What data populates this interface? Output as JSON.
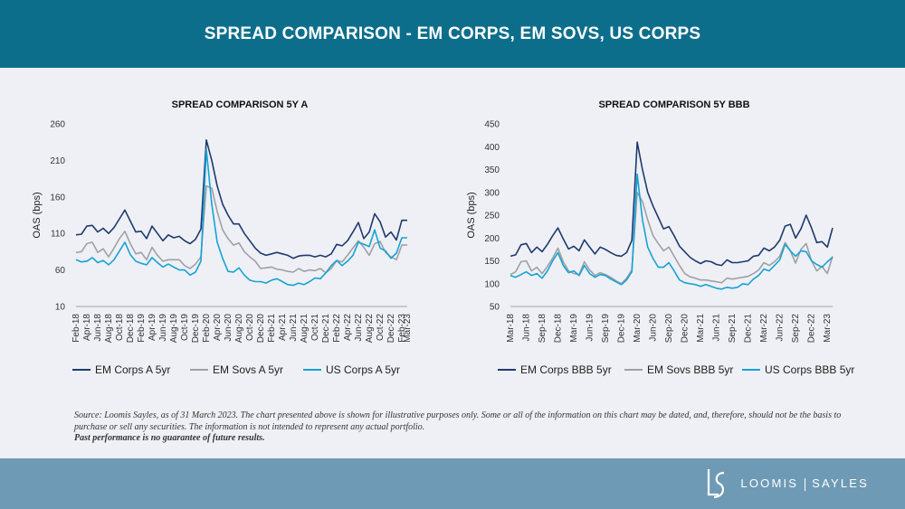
{
  "header": {
    "title": "SPREAD COMPARISON  - EM CORPS, EM SOVS, US CORPS"
  },
  "colors": {
    "header_bg": "#0d6e8c",
    "footer_bg": "#6e9ab5",
    "panel_bg": "#eef0f6",
    "em_corps": "#1f3a6e",
    "em_sovs": "#9ea1a6",
    "us_corps": "#17a2d4"
  },
  "chart_data": [
    {
      "type": "line",
      "title": "SPREAD COMPARISON 5Y A",
      "ylabel": "OAS (bps)",
      "xlabel": "",
      "ylim": [
        10,
        260
      ],
      "yticks": [
        10,
        60,
        110,
        160,
        210,
        260
      ],
      "grid": false,
      "legend_position": "bottom",
      "x_tick_labels": [
        "Feb-18",
        "Apr-18",
        "Jun-18",
        "Aug-18",
        "Oct-18",
        "Dec-18",
        "Feb-19",
        "Apr-19",
        "Jun-19",
        "Aug-19",
        "Oct-19",
        "Dec-19",
        "Feb-20",
        "Apr-20",
        "Jun-20",
        "Aug-20",
        "Oct-20",
        "Dec-20",
        "Feb-21",
        "Apr-21",
        "Jun-21",
        "Aug-21",
        "Oct-21",
        "Dec-21",
        "Feb-22",
        "Apr-22",
        "Jun-22",
        "Aug-22",
        "Oct-22",
        "Dec-22",
        "Feb-23",
        "Mar-23"
      ],
      "x_tick_index": [
        0,
        2,
        4,
        6,
        8,
        10,
        12,
        14,
        16,
        18,
        20,
        22,
        24,
        26,
        28,
        30,
        32,
        34,
        36,
        38,
        40,
        42,
        44,
        46,
        48,
        50,
        52,
        54,
        56,
        58,
        60,
        61
      ],
      "series": [
        {
          "name": "EM Corps A 5yr",
          "color": "#1f3a6e",
          "values": [
            108,
            109,
            120,
            121,
            112,
            117,
            110,
            118,
            130,
            142,
            127,
            112,
            113,
            103,
            120,
            110,
            100,
            108,
            104,
            106,
            100,
            96,
            102,
            116,
            238,
            210,
            175,
            150,
            135,
            123,
            123,
            110,
            100,
            90,
            83,
            80,
            82,
            84,
            82,
            80,
            76,
            79,
            80,
            80,
            78,
            80,
            78,
            82,
            95,
            93,
            100,
            112,
            125,
            103,
            112,
            137,
            126,
            105,
            112,
            101,
            128,
            128
          ],
          "label_positions": "none"
        },
        {
          "name": "EM Sovs A 5yr",
          "color": "#9ea1a6",
          "values": [
            84,
            85,
            96,
            98,
            84,
            89,
            78,
            90,
            103,
            113,
            96,
            82,
            84,
            74,
            91,
            80,
            72,
            74,
            74,
            74,
            66,
            62,
            68,
            78,
            175,
            172,
            140,
            115,
            103,
            94,
            97,
            85,
            78,
            72,
            62,
            63,
            64,
            61,
            60,
            58,
            57,
            62,
            58,
            60,
            59,
            62,
            56,
            62,
            73,
            71,
            80,
            90,
            100,
            91,
            80,
            96,
            99,
            84,
            78,
            74,
            94,
            94
          ],
          "label_positions": "none"
        },
        {
          "name": "US Corps A 5yr",
          "color": "#17a2d4",
          "values": [
            74,
            71,
            72,
            77,
            70,
            73,
            67,
            74,
            86,
            98,
            81,
            72,
            69,
            67,
            77,
            70,
            64,
            68,
            64,
            60,
            60,
            53,
            57,
            72,
            225,
            150,
            98,
            76,
            58,
            57,
            63,
            53,
            46,
            44,
            44,
            42,
            46,
            48,
            44,
            40,
            39,
            42,
            40,
            44,
            49,
            48,
            56,
            66,
            73,
            66,
            72,
            80,
            98,
            95,
            92,
            115,
            90,
            86,
            76,
            83,
            104,
            104
          ]
        }
      ]
    },
    {
      "type": "line",
      "title": "SPREAD COMPARISON 5Y BBB",
      "ylabel": "OAS (bps)",
      "xlabel": "",
      "ylim": [
        50,
        450
      ],
      "yticks": [
        50,
        100,
        150,
        200,
        250,
        300,
        350,
        400,
        450
      ],
      "grid": false,
      "legend_position": "bottom",
      "x_tick_labels": [
        "Mar-18",
        "Jun-18",
        "Sep-18",
        "Dec-18",
        "Mar-19",
        "Jun-19",
        "Sep-19",
        "Dec-19",
        "Mar-20",
        "Jun-20",
        "Sep-20",
        "Dec-20",
        "Mar-21",
        "Jun-21",
        "Sep-21",
        "Dec-21",
        "Mar-22",
        "Jun-22",
        "Sep-22",
        "Dec-22",
        "Mar-23"
      ],
      "x_tick_index": [
        0,
        3,
        6,
        9,
        12,
        15,
        18,
        21,
        24,
        27,
        30,
        33,
        36,
        39,
        42,
        45,
        48,
        51,
        54,
        57,
        60
      ],
      "series": [
        {
          "name": "EM Corps BBB 5yr",
          "color": "#1f3a6e",
          "values": [
            160,
            163,
            185,
            188,
            168,
            180,
            170,
            186,
            205,
            222,
            198,
            176,
            182,
            172,
            196,
            180,
            165,
            180,
            175,
            168,
            162,
            160,
            168,
            195,
            410,
            350,
            300,
            270,
            245,
            220,
            225,
            205,
            182,
            170,
            158,
            150,
            144,
            150,
            148,
            142,
            140,
            152,
            146,
            146,
            148,
            150,
            160,
            162,
            178,
            172,
            180,
            195,
            226,
            230,
            200,
            220,
            250,
            222,
            190,
            192,
            180,
            222
          ]
        },
        {
          "name": "EM Sovs BBB 5yr",
          "color": "#9ea1a6",
          "values": [
            120,
            126,
            148,
            150,
            128,
            136,
            122,
            138,
            156,
            178,
            148,
            128,
            122,
            120,
            148,
            130,
            118,
            124,
            120,
            114,
            106,
            100,
            112,
            130,
            300,
            280,
            240,
            205,
            188,
            172,
            180,
            160,
            140,
            122,
            115,
            112,
            108,
            108,
            106,
            104,
            102,
            112,
            110,
            112,
            114,
            116,
            122,
            130,
            146,
            140,
            148,
            160,
            190,
            172,
            145,
            175,
            188,
            150,
            128,
            138,
            122,
            160
          ]
        },
        {
          "name": "US Corps BBB 5yr",
          "color": "#17a2d4",
          "values": [
            118,
            114,
            120,
            126,
            118,
            122,
            112,
            128,
            150,
            168,
            140,
            124,
            128,
            118,
            140,
            122,
            114,
            120,
            118,
            110,
            104,
            98,
            108,
            126,
            340,
            240,
            180,
            155,
            136,
            136,
            146,
            128,
            108,
            102,
            100,
            98,
            94,
            98,
            94,
            90,
            88,
            92,
            90,
            92,
            100,
            98,
            110,
            118,
            132,
            128,
            140,
            152,
            186,
            172,
            160,
            172,
            170,
            150,
            142,
            136,
            148,
            158
          ]
        }
      ]
    }
  ],
  "footer": {
    "source_text": "Source: Loomis Sayles, as of 31 March 2023. The chart presented above is shown for illustrative purposes only. Some or all of the information on this chart may be dated, and, therefore, should not be the basis to purchase or sell any securities. The information is not intended to represent any actual portfolio.",
    "disclaimer": "Past performance is no guarantee of future results.",
    "logo_left": "LOOMIS",
    "logo_right": "SAYLES"
  }
}
